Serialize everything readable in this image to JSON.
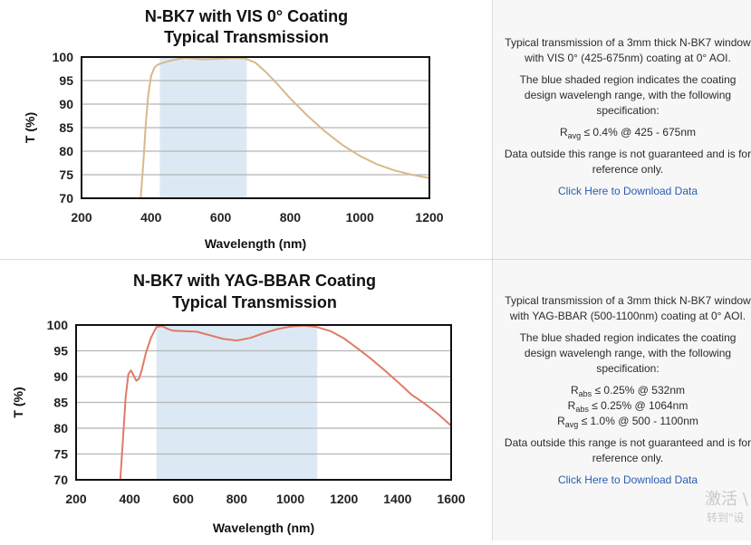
{
  "panels": [
    {
      "description": "Typical transmission of a 3mm thick N-BK7 window with VIS 0° (425-675nm) coating at 0° AOI.",
      "shading_note": "The blue shaded region indicates the coating design wavelengh range, with the following specification:",
      "specs": [
        {
          "symbol": "R",
          "sub": "avg",
          "text": " ≤ 0.4% @ 425 - 675nm"
        }
      ],
      "disclaimer": "Data outside this range is not guaranteed and is for reference only.",
      "link": "Click Here to Download Data"
    },
    {
      "description": "Typical transmission of a 3mm thick N-BK7 window with YAG-BBAR (500-1100nm) coating at 0° AOI.",
      "shading_note": "The blue shaded region indicates the coating design wavelengh range, with the following specification:",
      "specs": [
        {
          "symbol": "R",
          "sub": "abs",
          "text": " ≤ 0.25% @ 532nm"
        },
        {
          "symbol": "R",
          "sub": "abs",
          "text": " ≤ 0.25% @ 1064nm"
        },
        {
          "symbol": "R",
          "sub": "avg",
          "text": " ≤ 1.0% @ 500 - 1100nm"
        }
      ],
      "disclaimer": "Data outside this range is not guaranteed and is for reference only.",
      "link": "Click Here to Download Data"
    }
  ],
  "watermark": {
    "line1": "激活 \\",
    "line2": "转到\"设"
  },
  "colors": {
    "curve1": "#d8b98a",
    "curve2": "#e07a66",
    "shade": "#dce9f5",
    "grid": "#b5b5b5"
  },
  "chart_data": [
    {
      "type": "line",
      "title": "N-BK7 with VIS 0° Coating",
      "subtitle": "Typical Transmission",
      "xlabel": "Wavelength (nm)",
      "ylabel": "T (%)",
      "xlim": [
        200,
        1200
      ],
      "ylim": [
        70,
        100
      ],
      "xticks": [
        200,
        400,
        600,
        800,
        1000,
        1200
      ],
      "yticks": [
        70,
        75,
        80,
        85,
        90,
        95,
        100
      ],
      "grid": true,
      "shaded_range": [
        425,
        675
      ],
      "series": [
        {
          "x": [
            370,
            378,
            385,
            392,
            400,
            410,
            420,
            430,
            445,
            460,
            480,
            500,
            520,
            550,
            580,
            610,
            640,
            670,
            700,
            730,
            760,
            800,
            850,
            900,
            950,
            1000,
            1050,
            1100,
            1150,
            1200
          ],
          "y": [
            70,
            78,
            86,
            92,
            96,
            97.8,
            98.4,
            98.7,
            99.0,
            99.3,
            99.6,
            99.8,
            99.7,
            99.5,
            99.6,
            99.7,
            99.8,
            99.7,
            98.8,
            96.8,
            94.5,
            91.2,
            87.5,
            84.2,
            81.3,
            79.0,
            77.2,
            75.9,
            75.0,
            74.3
          ]
        }
      ]
    },
    {
      "type": "line",
      "title": "N-BK7 with YAG-BBAR Coating",
      "subtitle": "Typical Transmission",
      "xlabel": "Wavelength (nm)",
      "ylabel": "T (%)",
      "xlim": [
        200,
        1600
      ],
      "ylim": [
        70,
        100
      ],
      "xticks": [
        200,
        400,
        600,
        800,
        1000,
        1200,
        1400,
        1600
      ],
      "yticks": [
        70,
        75,
        80,
        85,
        90,
        95,
        100
      ],
      "grid": true,
      "shaded_range": [
        500,
        1100
      ],
      "series": [
        {
          "x": [
            365,
            375,
            385,
            395,
            405,
            415,
            425,
            435,
            445,
            460,
            480,
            500,
            520,
            540,
            560,
            600,
            650,
            700,
            750,
            800,
            850,
            900,
            950,
            1000,
            1050,
            1100,
            1150,
            1200,
            1250,
            1300,
            1350,
            1400,
            1450,
            1500,
            1550,
            1600
          ],
          "y": [
            70,
            78,
            86,
            90.5,
            91.2,
            90.2,
            89.2,
            89.6,
            91.2,
            94.5,
            97.6,
            99.6,
            99.8,
            99.3,
            98.9,
            98.8,
            98.7,
            98.0,
            97.3,
            97.0,
            97.5,
            98.4,
            99.2,
            99.7,
            99.9,
            99.6,
            98.8,
            97.4,
            95.5,
            93.5,
            91.3,
            89.0,
            86.6,
            84.8,
            82.8,
            80.5
          ]
        }
      ]
    }
  ]
}
